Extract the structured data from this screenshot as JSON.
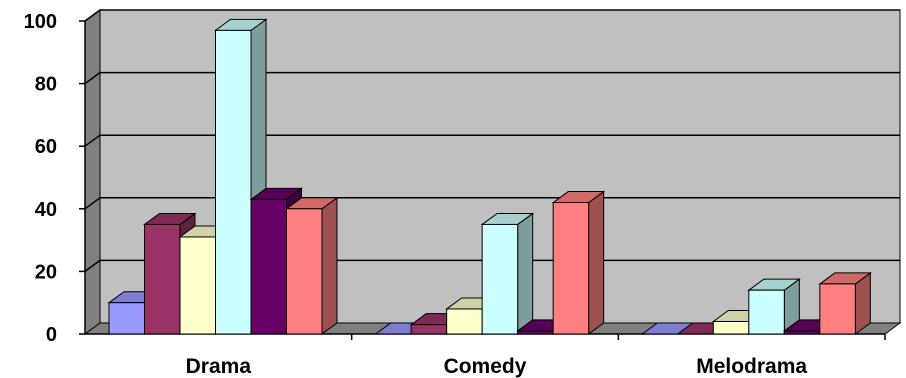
{
  "chart_data": {
    "type": "bar",
    "title": "",
    "xlabel": "",
    "ylabel": "",
    "categories": [
      "Drama",
      "Comedy",
      "Melodrama"
    ],
    "ylim": [
      0,
      100
    ],
    "yticks": [
      0,
      20,
      40,
      60,
      80,
      100
    ],
    "grid": true,
    "three_d": true,
    "series": [
      {
        "color": "#9999ff",
        "values": [
          10,
          0,
          0
        ]
      },
      {
        "color": "#993366",
        "values": [
          35,
          3,
          0
        ]
      },
      {
        "color": "#ffffcc",
        "values": [
          31,
          8,
          4
        ]
      },
      {
        "color": "#ccffff",
        "values": [
          97,
          35,
          14
        ]
      },
      {
        "color": "#660066",
        "values": [
          43,
          1,
          1
        ]
      },
      {
        "color": "#ff8080",
        "values": [
          40,
          42,
          16
        ]
      }
    ],
    "colors": {
      "plot_wall": "#c0c0c0",
      "side_wall": "#808080",
      "floor": "#808080",
      "gridline": "#000000"
    }
  }
}
